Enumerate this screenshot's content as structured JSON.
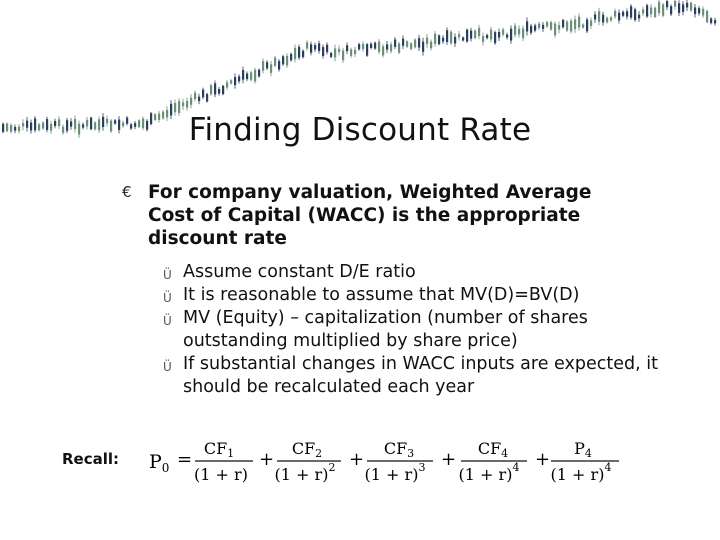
{
  "slide": {
    "title": "Finding Discount Rate",
    "main_bullet": {
      "glyph": "€",
      "text": "For company valuation, Weighted Average Cost of Capital (WACC) is the appropriate discount rate"
    },
    "sub_bullets": [
      {
        "glyph": "Ü",
        "text": "Assume constant D/E ratio"
      },
      {
        "glyph": "Ü",
        "text": "It is reasonable to assume that MV(D)=BV(D)"
      },
      {
        "glyph": "Ü",
        "text": "MV (Equity) – capitalization (number of shares outstanding multiplied by share price)"
      },
      {
        "glyph": "Ü",
        "text": "If substantial changes in WACC inputs are expected, it should be recalculated each year"
      }
    ],
    "recall_label": "Recall:",
    "formula": {
      "lhs": "P",
      "lhs_sub": "0",
      "equals": "=",
      "plus": "+",
      "denom_base": "(1 + r)",
      "terms": [
        {
          "num": "CF",
          "num_sub": "1",
          "exp": ""
        },
        {
          "num": "CF",
          "num_sub": "2",
          "exp": "2"
        },
        {
          "num": "CF",
          "num_sub": "3",
          "exp": "3"
        },
        {
          "num": "CF",
          "num_sub": "4",
          "exp": "4"
        },
        {
          "num": "P",
          "num_sub": "4",
          "exp": "4"
        }
      ]
    },
    "colors": {
      "background": "#ffffff",
      "ticker_bull": "#6b8f78",
      "ticker_bear": "#2b3f5c"
    }
  }
}
